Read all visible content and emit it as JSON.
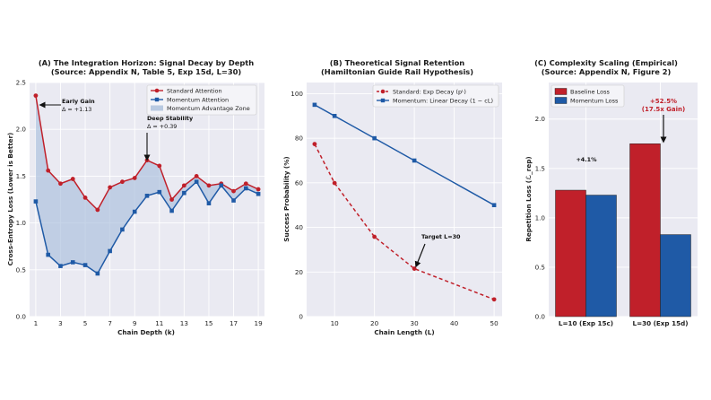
{
  "chart_data": [
    {
      "type": "line",
      "title": "(A) The Integration Horizon: Signal Decay by Depth",
      "subtitle": "(Source: Appendix N, Table 5, Exp 15d, L=30)",
      "xlabel": "Chain Depth (k)",
      "ylabel": "Cross-Entropy Loss (Lower is Better)",
      "xlim": [
        0.5,
        19.5
      ],
      "ylim": [
        0,
        2.5
      ],
      "xticks": [
        1,
        3,
        5,
        7,
        9,
        11,
        13,
        15,
        17,
        19
      ],
      "yticks": [
        0.0,
        0.5,
        1.0,
        1.5,
        2.0,
        2.5
      ],
      "x": [
        1,
        2,
        3,
        4,
        5,
        6,
        7,
        8,
        9,
        10,
        11,
        12,
        13,
        14,
        15,
        16,
        17,
        18,
        19
      ],
      "series": [
        {
          "name": "Standard Attention",
          "color": "#c0202a",
          "marker": "circle",
          "values": [
            2.36,
            1.56,
            1.42,
            1.47,
            1.27,
            1.14,
            1.38,
            1.44,
            1.48,
            1.67,
            1.61,
            1.25,
            1.4,
            1.5,
            1.4,
            1.42,
            1.34,
            1.42,
            1.36
          ]
        },
        {
          "name": "Momentum Attention",
          "color": "#1f5aa6",
          "marker": "square",
          "values": [
            1.23,
            0.66,
            0.54,
            0.58,
            0.55,
            0.46,
            0.7,
            0.93,
            1.12,
            1.29,
            1.33,
            1.13,
            1.32,
            1.44,
            1.21,
            1.4,
            1.24,
            1.37,
            1.31
          ]
        }
      ],
      "fill_label": "Momentum Advantage Zone",
      "annotations": [
        {
          "title": "Early Gain",
          "text": "Δ = +1.13"
        },
        {
          "title": "Deep Stability",
          "text": "Δ = +0.39"
        }
      ]
    },
    {
      "type": "line",
      "title": "(B) Theoretical Signal Retention",
      "subtitle": "(Hamiltonian Guide Rail Hypothesis)",
      "xlabel": "Chain Length (L)",
      "ylabel": "Success Probability (%)",
      "xlim": [
        3,
        52
      ],
      "ylim": [
        0,
        105
      ],
      "xticks": [
        10,
        20,
        30,
        40,
        50
      ],
      "yticks": [
        0,
        20,
        40,
        60,
        80,
        100
      ],
      "x": [
        5,
        10,
        20,
        30,
        50
      ],
      "series": [
        {
          "name": "Standard: Exp Decay (p^L)",
          "color": "#c0202a",
          "marker": "circle",
          "dashed": true,
          "values": [
            77.4,
            59.9,
            35.8,
            21.5,
            7.7
          ]
        },
        {
          "name": "Momentum: Linear Decay (1 − cL)",
          "color": "#1f5aa6",
          "marker": "square",
          "dashed": false,
          "values": [
            95,
            90,
            80,
            70,
            50
          ]
        }
      ],
      "legend": [
        "Standard: Exp Decay (pᴸ)",
        "Momentum: Linear Decay (1 − cL)"
      ],
      "annotations": [
        {
          "text": "Target L=30"
        }
      ]
    },
    {
      "type": "bar",
      "title": "(C) Complexity Scaling (Empirical)",
      "subtitle": "(Source: Appendix N, Figure 2)",
      "xlabel": "",
      "ylabel": "Repetition Loss (ℒ_rep)",
      "ylim": [
        0,
        2.37
      ],
      "yticks": [
        0.0,
        0.5,
        1.0,
        1.5,
        2.0
      ],
      "categories": [
        "L=10 (Exp 15c)",
        "L=30 (Exp 15d)"
      ],
      "series": [
        {
          "name": "Baseline Loss",
          "color": "#c0202a",
          "values": [
            1.28,
            1.75
          ]
        },
        {
          "name": "Momentum Loss",
          "color": "#1f5aa6",
          "values": [
            1.23,
            0.83
          ]
        }
      ],
      "annotations": [
        {
          "text": "+4.1%"
        },
        {
          "text": "+52.5%"
        },
        {
          "text": "(17.5x Gain)"
        }
      ]
    }
  ]
}
